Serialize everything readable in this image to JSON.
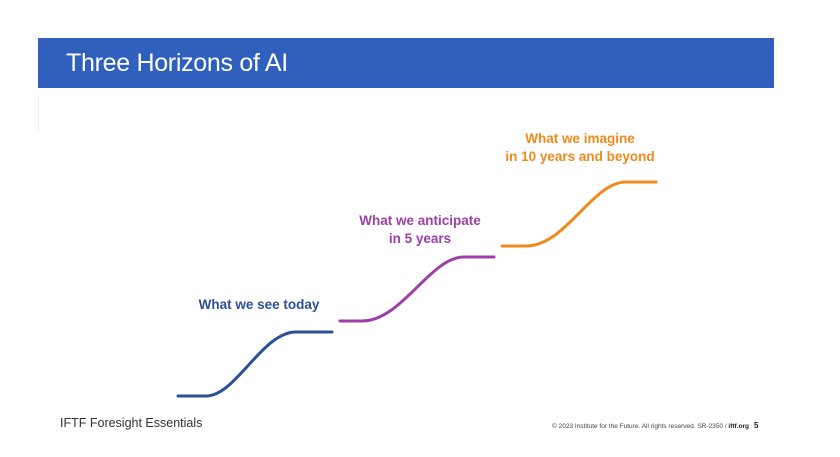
{
  "slide": {
    "title": "Three Horizons of AI"
  },
  "horizons": [
    {
      "name": "today",
      "color": "#2c4f98",
      "lines": [
        "What we see today"
      ]
    },
    {
      "name": "5-years",
      "color": "#9c3fa6",
      "lines": [
        "What we anticipate",
        "in 5 years"
      ]
    },
    {
      "name": "10-years",
      "color": "#f08a1c",
      "lines": [
        "What we imagine",
        "in 10 years and beyond"
      ]
    }
  ],
  "footer": {
    "brand": "IFTF Foresight Essentials",
    "copyright": "© 2023 Institute for the Future. All rights reserved. SR-2350 / ",
    "site": "iftf.org",
    "page_number": "5"
  },
  "colors": {
    "title_bar": "#2f60bd"
  }
}
